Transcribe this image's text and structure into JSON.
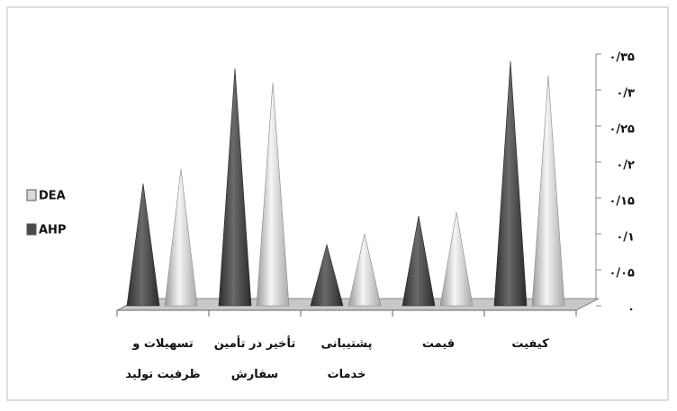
{
  "chart_data": {
    "type": "cone",
    "categories": [
      "تسهیلات و ظرفیت تولید",
      "تأخیر در تأمین سفارش",
      "پشتیبانی خدمات",
      "قیمت",
      "کیفیت"
    ],
    "series": [
      {
        "name": "AHP",
        "color": "#4a4a4a",
        "values": [
          0.17,
          0.33,
          0.085,
          0.125,
          0.34
        ]
      },
      {
        "name": "DEA",
        "color": "#d9d9d9",
        "values": [
          0.19,
          0.31,
          0.1,
          0.13,
          0.32
        ]
      }
    ],
    "ylim": [
      0,
      0.35
    ],
    "yticks": [
      {
        "value": 0,
        "label": "۰"
      },
      {
        "value": 0.05,
        "label": "۰/۰۵"
      },
      {
        "value": 0.1,
        "label": "۰/۱"
      },
      {
        "value": 0.15,
        "label": "۰/۱۵"
      },
      {
        "value": 0.2,
        "label": "۰/۲"
      },
      {
        "value": 0.25,
        "label": "۰/۲۵"
      },
      {
        "value": 0.3,
        "label": "۰/۳"
      },
      {
        "value": 0.35,
        "label": "۰/۳۵"
      }
    ],
    "legend": "left"
  }
}
